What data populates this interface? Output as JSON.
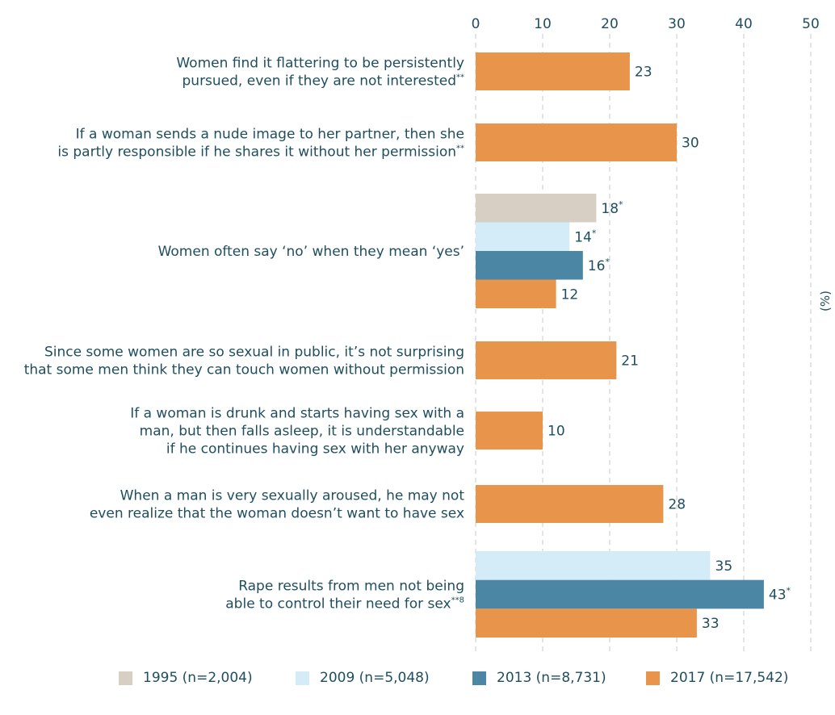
{
  "chart_data": {
    "type": "bar",
    "orientation": "horizontal",
    "x_axis": {
      "ticks": [
        "0",
        "10",
        "20",
        "30",
        "40",
        "50"
      ],
      "range": [
        0,
        50
      ],
      "position": "top",
      "unit": "(%)",
      "grid": "dashed-vertical"
    },
    "series": [
      {
        "name": "1995 (n=2,004)",
        "color": "#d8cfc4"
      },
      {
        "name": "2009 (n=5,048)",
        "color": "#d4ebf8"
      },
      {
        "name": "2013 (n=8,731)",
        "color": "#4b86a4"
      },
      {
        "name": "2017 (n=17,542)",
        "color": "#e8944a"
      }
    ],
    "categories": [
      {
        "label_lines": [
          "Women find it flattering to be persistently",
          "pursued, even if they are not interested"
        ],
        "label_suffix": "**",
        "bars": [
          {
            "series": 3,
            "value": 23,
            "label": "23",
            "mark": ""
          }
        ]
      },
      {
        "label_lines": [
          "If a woman sends a nude image to her partner, then she",
          "is partly responsible if he shares it without her permission"
        ],
        "label_suffix": "**",
        "bars": [
          {
            "series": 3,
            "value": 30,
            "label": "30",
            "mark": ""
          }
        ]
      },
      {
        "label_lines": [
          "Women often say ‘no’ when they mean ‘yes’"
        ],
        "label_suffix": "",
        "bars": [
          {
            "series": 0,
            "value": 18,
            "label": "18",
            "mark": "*"
          },
          {
            "series": 1,
            "value": 14,
            "label": "14",
            "mark": "*"
          },
          {
            "series": 2,
            "value": 16,
            "label": "16",
            "mark": "*"
          },
          {
            "series": 3,
            "value": 12,
            "label": "12",
            "mark": ""
          }
        ]
      },
      {
        "label_lines": [
          "Since some women are so sexual in public, it’s not surprising",
          "that some men think they can touch women without permission"
        ],
        "label_suffix": "",
        "bars": [
          {
            "series": 3,
            "value": 21,
            "label": "21",
            "mark": ""
          }
        ]
      },
      {
        "label_lines": [
          "If a woman is drunk and starts having sex with a",
          "man, but then falls asleep, it is understandable",
          "if he continues having sex with her anyway"
        ],
        "label_suffix": "",
        "bars": [
          {
            "series": 3,
            "value": 10,
            "label": "10",
            "mark": ""
          }
        ]
      },
      {
        "label_lines": [
          "When a man is very sexually aroused, he may not",
          "even realize that the woman doesn’t want to have sex"
        ],
        "label_suffix": "",
        "bars": [
          {
            "series": 3,
            "value": 28,
            "label": "28",
            "mark": ""
          }
        ]
      },
      {
        "label_lines": [
          "Rape results from men not being",
          "able to control their need for sex"
        ],
        "label_suffix": "**8",
        "bars": [
          {
            "series": 1,
            "value": 35,
            "label": "35",
            "mark": ""
          },
          {
            "series": 2,
            "value": 43,
            "label": "43",
            "mark": "*"
          },
          {
            "series": 3,
            "value": 33,
            "label": "33",
            "mark": ""
          }
        ]
      }
    ]
  }
}
